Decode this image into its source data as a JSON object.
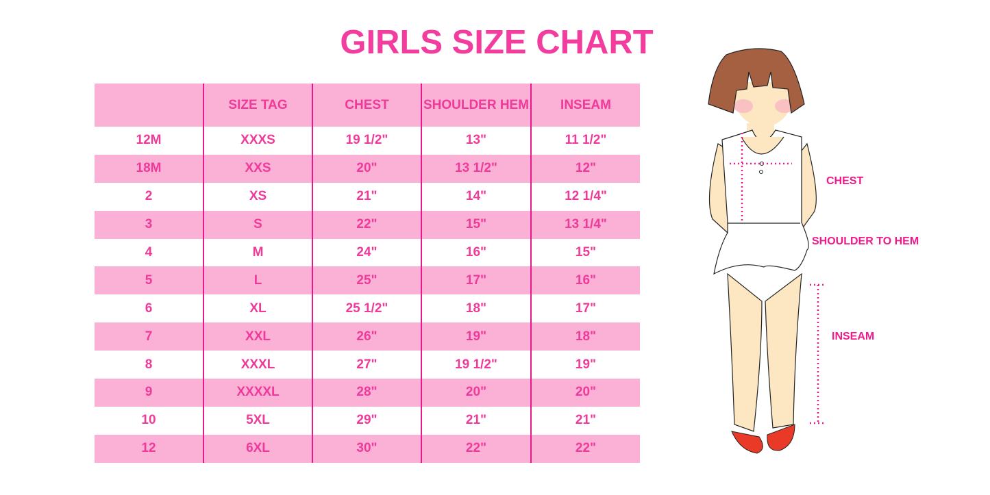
{
  "title": "GIRLS SIZE CHART",
  "table": {
    "headers": [
      "",
      "SIZE TAG",
      "CHEST",
      "SHOULDER HEM",
      "INSEAM"
    ],
    "rows": [
      [
        "12M",
        "XXXS",
        "19 1/2\"",
        "13\"",
        "11 1/2\""
      ],
      [
        "18M",
        "XXS",
        "20\"",
        "13 1/2\"",
        "12\""
      ],
      [
        "2",
        "XS",
        "21\"",
        "14\"",
        "12 1/4\""
      ],
      [
        "3",
        "S",
        "22\"",
        "15\"",
        "13 1/4\""
      ],
      [
        "4",
        "M",
        "24\"",
        "16\"",
        "15\""
      ],
      [
        "5",
        "L",
        "25\"",
        "17\"",
        "16\""
      ],
      [
        "6",
        "XL",
        "25 1/2\"",
        "18\"",
        "17\""
      ],
      [
        "7",
        "XXL",
        "26\"",
        "19\"",
        "18\""
      ],
      [
        "8",
        "XXXL",
        "27\"",
        "19 1/2\"",
        "19\""
      ],
      [
        "9",
        "XXXXL",
        "28\"",
        "20\"",
        "20\""
      ],
      [
        "10",
        "5XL",
        "29\"",
        "21\"",
        "21\""
      ],
      [
        "12",
        "6XL",
        "30\"",
        "22\"",
        "22\""
      ]
    ]
  },
  "figure": {
    "labels": {
      "chest": "CHEST",
      "shoulder": "SHOULDER TO HEM",
      "inseam": "INSEAM"
    }
  },
  "colors": {
    "accent": "#ef3a9a",
    "row_fill": "#fbb0d6",
    "divider": "#e6198a"
  }
}
